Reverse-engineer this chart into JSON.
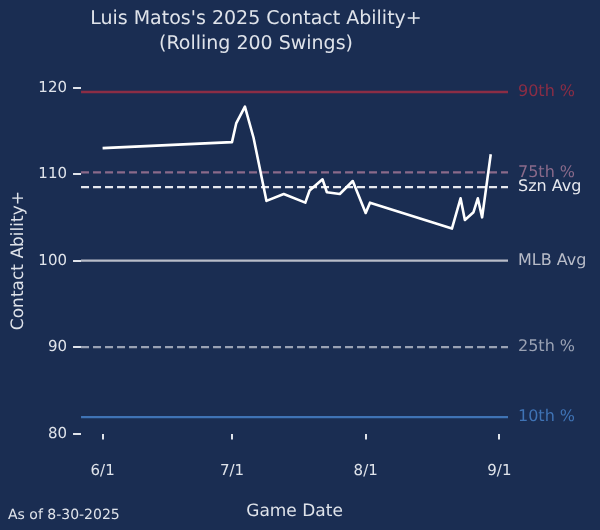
{
  "chart_data": {
    "type": "line",
    "title": "Luis Matos's 2025 Contact Ability+",
    "subtitle": "(Rolling 200 Swings)",
    "xlabel": "Game Date",
    "ylabel": "Contact Ability+",
    "x": [
      "2025-06-01",
      "2025-07-01",
      "2025-07-02",
      "2025-07-04",
      "2025-07-06",
      "2025-07-09",
      "2025-07-13",
      "2025-07-18",
      "2025-07-19",
      "2025-07-22",
      "2025-07-23",
      "2025-07-26",
      "2025-07-29",
      "2025-08-01",
      "2025-08-02",
      "2025-08-21",
      "2025-08-23",
      "2025-08-24",
      "2025-08-26",
      "2025-08-27",
      "2025-08-28",
      "2025-08-30"
    ],
    "series": [
      {
        "color": "#ffffff",
        "values": [
          113.0,
          113.7,
          115.9,
          117.8,
          114.2,
          106.9,
          107.7,
          106.7,
          108.1,
          109.4,
          107.9,
          107.7,
          109.2,
          105.5,
          106.7,
          103.7,
          107.2,
          104.7,
          105.6,
          107.2,
          105.0,
          112.3
        ]
      }
    ],
    "xlim": [
      "2025-05-27",
      "2025-09-03"
    ],
    "xticks": [
      {
        "value": "2025-06-01",
        "label": "6/1"
      },
      {
        "value": "2025-07-01",
        "label": "7/1"
      },
      {
        "value": "2025-08-01",
        "label": "8/1"
      },
      {
        "value": "2025-09-01",
        "label": "9/1"
      }
    ],
    "ylim": [
      80,
      120
    ],
    "yticks": [
      80,
      90,
      100,
      110,
      120
    ],
    "ref_lines": [
      {
        "axis": "y",
        "value": 119.5,
        "label": "90th %",
        "color": "#8b2d45",
        "line_style": "solid"
      },
      {
        "axis": "y",
        "value": 110.2,
        "label": "75th %",
        "color": "#8a6a8a",
        "line_style": "dashed"
      },
      {
        "axis": "y",
        "value": 108.5,
        "label": "Szn Avg",
        "color": "#e6e8ee",
        "line_style": "dashed"
      },
      {
        "axis": "y",
        "value": 100,
        "label": "MLB Avg",
        "color": "#b8bcc8",
        "line_style": "solid"
      },
      {
        "axis": "y",
        "value": 90,
        "label": "25th %",
        "color": "#9aa2b4",
        "line_style": "dashed"
      },
      {
        "axis": "y",
        "value": 81.9,
        "label": "10th %",
        "color": "#3f73b5",
        "line_style": "solid"
      }
    ],
    "annotations": [
      "As of 8-30-2025"
    ],
    "grid": false,
    "legend": false,
    "marker": "none",
    "line_style": "solid"
  }
}
